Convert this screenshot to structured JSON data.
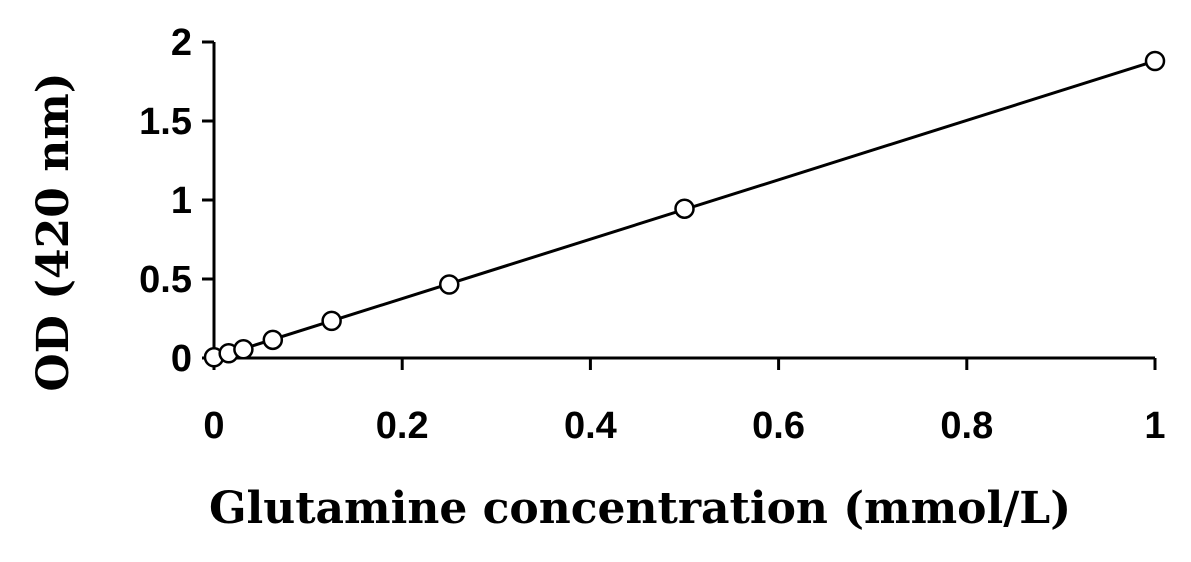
{
  "chart_data": {
    "type": "scatter",
    "xlabel": "Glutamine concentration (mmol/L)",
    "ylabel": "OD (420 nm)",
    "xlim": [
      0,
      1
    ],
    "ylim": [
      0,
      2
    ],
    "x_ticks": [
      0,
      0.2,
      0.4,
      0.6,
      0.8,
      1
    ],
    "x_tick_labels": [
      "0",
      "0.2",
      "0.4",
      "0.6",
      "0.8",
      "1"
    ],
    "y_ticks": [
      0,
      0.5,
      1,
      1.5,
      2
    ],
    "y_tick_labels": [
      "0",
      "0.5",
      "1",
      "1.5",
      "2"
    ],
    "grid": false,
    "legend": "none",
    "series": [
      {
        "marker": "open-circle",
        "x": [
          0,
          0.0156,
          0.03125,
          0.0625,
          0.125,
          0.25,
          0.5,
          1
        ],
        "y": [
          0.005,
          0.03,
          0.055,
          0.115,
          0.235,
          0.465,
          0.945,
          1.88
        ]
      }
    ],
    "trendline": {
      "type": "linear",
      "x": [
        0,
        1
      ],
      "y": [
        0,
        1.88
      ]
    }
  }
}
